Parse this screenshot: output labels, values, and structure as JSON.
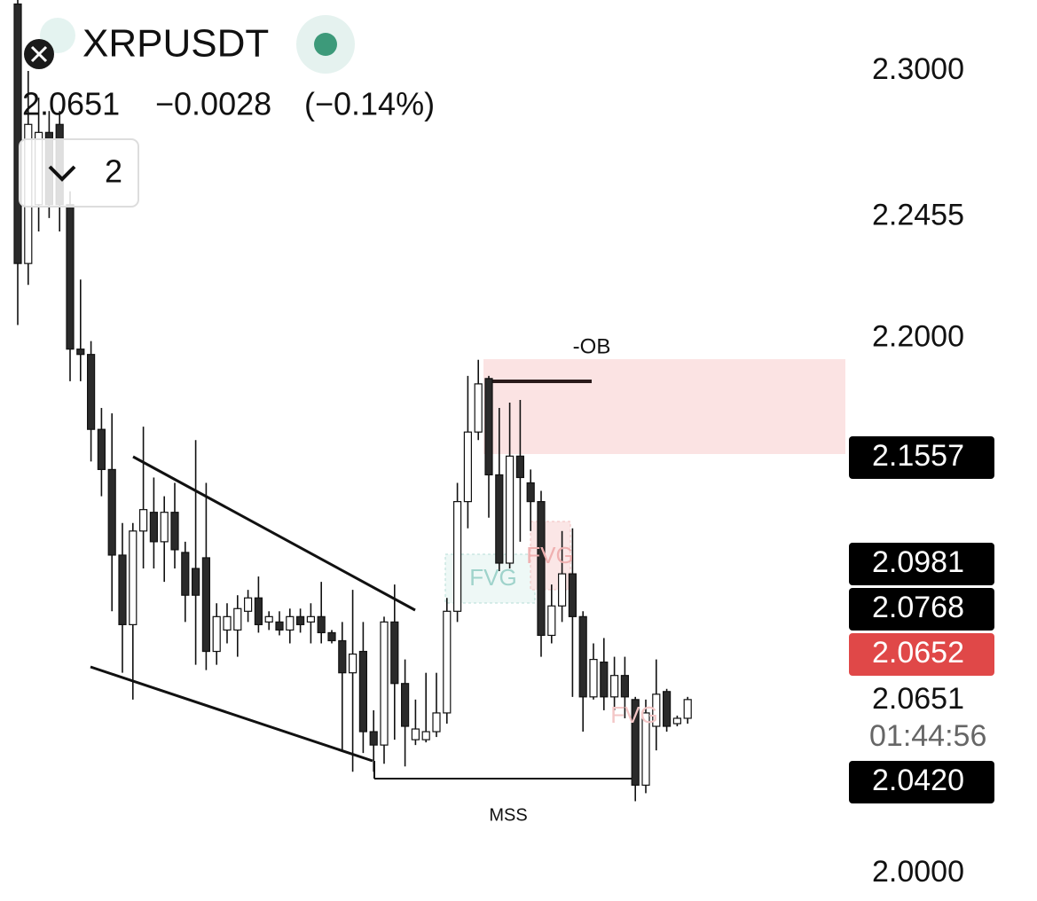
{
  "header": {
    "symbol": "XRPUSDT",
    "price": "2.0651",
    "change": "−0.0028",
    "change_pct": "(−0.14%)",
    "indicator_count": "2"
  },
  "chart_data": {
    "type": "candlestick",
    "open": [
      2.325,
      2.228,
      2.25,
      2.277,
      2.28,
      2.25,
      2.196,
      2.194,
      2.166,
      2.151,
      2.119,
      2.093,
      2.128,
      2.135,
      2.124,
      2.135,
      2.12,
      2.114,
      2.118,
      2.083,
      2.091,
      2.091,
      2.098,
      2.103,
      2.094,
      2.094,
      2.091,
      2.096,
      2.094,
      2.096,
      2.09,
      2.087,
      2.075,
      2.083,
      2.053,
      2.048,
      2.094,
      2.071,
      2.05,
      2.05,
      2.053,
      2.06,
      2.098,
      2.139,
      2.165,
      2.185,
      2.149,
      2.116,
      2.156,
      2.146,
      2.139,
      2.089,
      2.1,
      2.112,
      2.096,
      2.066,
      2.079,
      2.066,
      2.074,
      2.065,
      2.033,
      2.055,
      2.068,
      2.056,
      2.058
    ],
    "high": [
      2.33,
      2.3,
      2.29,
      2.285,
      2.285,
      2.255,
      2.222,
      2.199,
      2.174,
      2.172,
      2.131,
      2.131,
      2.167,
      2.148,
      2.141,
      2.146,
      2.124,
      2.162,
      2.146,
      2.101,
      2.101,
      2.104,
      2.106,
      2.111,
      2.098,
      2.098,
      2.099,
      2.099,
      2.101,
      2.109,
      2.091,
      2.094,
      2.106,
      2.094,
      2.061,
      2.096,
      2.108,
      2.08,
      2.065,
      2.075,
      2.075,
      2.103,
      2.146,
      2.186,
      2.192,
      2.186,
      2.174,
      2.176,
      2.177,
      2.151,
      2.143,
      2.108,
      2.128,
      2.129,
      2.098,
      2.086,
      2.088,
      2.081,
      2.081,
      2.066,
      2.065,
      2.08,
      2.069,
      2.059,
      2.066
    ],
    "low": [
      2.205,
      2.22,
      2.24,
      2.245,
      2.24,
      2.184,
      2.184,
      2.154,
      2.141,
      2.098,
      2.075,
      2.065,
      2.114,
      2.114,
      2.109,
      2.114,
      2.094,
      2.078,
      2.076,
      2.078,
      2.086,
      2.081,
      2.094,
      2.09,
      2.091,
      2.089,
      2.086,
      2.09,
      2.086,
      2.086,
      2.086,
      2.046,
      2.038,
      2.045,
      2.038,
      2.041,
      2.05,
      2.04,
      2.048,
      2.049,
      2.051,
      2.056,
      2.094,
      2.129,
      2.162,
      2.133,
      2.113,
      2.114,
      2.124,
      2.128,
      2.081,
      2.086,
      2.094,
      2.066,
      2.053,
      2.065,
      2.061,
      2.061,
      2.058,
      2.027,
      2.03,
      2.046,
      2.053,
      2.055,
      2.056
    ],
    "close": [
      2.228,
      2.28,
      2.277,
      2.25,
      2.25,
      2.196,
      2.194,
      2.166,
      2.151,
      2.119,
      2.093,
      2.128,
      2.136,
      2.124,
      2.135,
      2.121,
      2.104,
      2.104,
      2.083,
      2.096,
      2.096,
      2.099,
      2.103,
      2.093,
      2.096,
      2.091,
      2.096,
      2.093,
      2.096,
      2.09,
      2.087,
      2.075,
      2.082,
      2.053,
      2.048,
      2.094,
      2.071,
      2.055,
      2.054,
      2.053,
      2.06,
      2.098,
      2.139,
      2.165,
      2.183,
      2.149,
      2.116,
      2.156,
      2.148,
      2.139,
      2.089,
      2.1,
      2.112,
      2.096,
      2.066,
      2.08,
      2.066,
      2.074,
      2.066,
      2.033,
      2.06,
      2.067,
      2.055,
      2.058,
      2.065
    ],
    "up_color": "#ffffff",
    "down_color": "#2a2a2a",
    "ylim": [
      1.9897,
      2.3265
    ],
    "yticks": [
      {
        "value": 2.3,
        "label": "2.3000"
      },
      {
        "value": 2.2455,
        "label": "2.2455"
      },
      {
        "value": 2.2,
        "label": "2.2000"
      },
      {
        "value": 2.0,
        "label": "2.0000"
      }
    ],
    "price_tags": [
      {
        "value": 2.1557,
        "color": "#000000"
      },
      {
        "value": 2.0981,
        "color": "#000000"
      },
      {
        "value": 2.0768,
        "color": "#000000"
      },
      {
        "value": 2.0652,
        "color": "#e04848"
      },
      {
        "value": 2.0651,
        "color": "none"
      },
      {
        "value": 2.042,
        "label": "2.0420",
        "color": "#000000"
      }
    ],
    "countdown": "01:44:56",
    "annotations": [
      "-OB",
      "MSS",
      "FVG",
      "FVG",
      "FVG"
    ]
  }
}
